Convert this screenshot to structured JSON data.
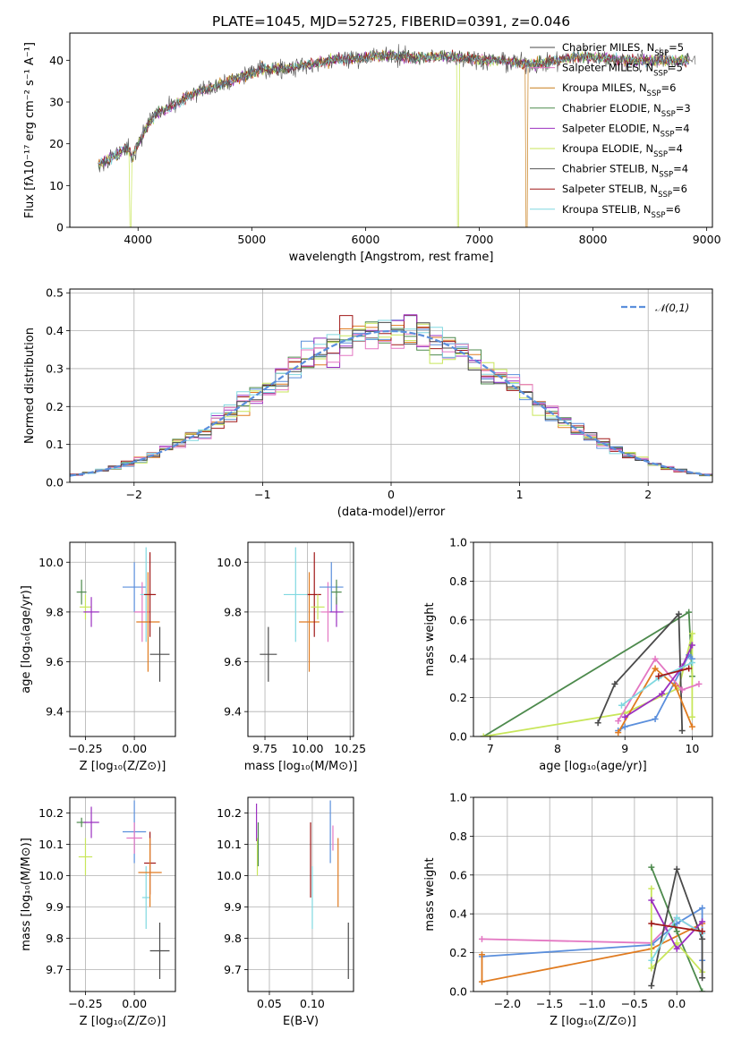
{
  "title": "PLATE=1045, MJD=52725, FIBERID=0391, z=0.046",
  "legend_entries": [
    {
      "label": "Chabrier MILES, N",
      "sub": "SSP",
      "value": "=5",
      "color": "#4a4a4a"
    },
    {
      "label": "Salpeter MILES, N",
      "sub": "SSP",
      "value": "=5",
      "color": "#e377c2"
    },
    {
      "label": "Kroupa MILES, N",
      "sub": "SSP",
      "value": "=6",
      "color": "#c87f1c"
    },
    {
      "label": "Chabrier ELODIE, N",
      "sub": "SSP",
      "value": "=3",
      "color": "#4d8a4d"
    },
    {
      "label": "Salpeter ELODIE, N",
      "sub": "SSP",
      "value": "=4",
      "color": "#9b30c0"
    },
    {
      "label": "Kroupa ELODIE, N",
      "sub": "SSP",
      "value": "=4",
      "color": "#c8e65a"
    },
    {
      "label": "Chabrier STELIB, N",
      "sub": "SSP",
      "value": "=4",
      "color": "#555555"
    },
    {
      "label": "Salpeter STELIB, N",
      "sub": "SSP",
      "value": "=6",
      "color": "#a01818"
    },
    {
      "label": "Kroupa STELIB, N",
      "sub": "SSP",
      "value": "=6",
      "color": "#80d8e0"
    }
  ],
  "chart_data": [
    {
      "id": "spectrum",
      "type": "line",
      "xlabel": "wavelength [Angstrom, rest frame]",
      "ylabel": "Flux [fλ10⁻¹⁷ erg cm⁻² s⁻¹ A⁻¹]",
      "xlim": [
        3400,
        9050
      ],
      "ylim": [
        0,
        46.5
      ],
      "xticks": [
        4000,
        5000,
        6000,
        7000,
        8000,
        9000
      ],
      "yticks": [
        0,
        10,
        20,
        30,
        40
      ],
      "grid": false,
      "legend": "upper right",
      "continuum": [
        [
          3650,
          15
        ],
        [
          3800,
          17
        ],
        [
          3900,
          19
        ],
        [
          3950,
          17
        ],
        [
          4050,
          23
        ],
        [
          4150,
          27
        ],
        [
          4300,
          29
        ],
        [
          4500,
          32
        ],
        [
          4700,
          34
        ],
        [
          4900,
          36
        ],
        [
          5100,
          38
        ],
        [
          5300,
          38
        ],
        [
          5500,
          39
        ],
        [
          5700,
          40
        ],
        [
          5900,
          40.5
        ],
        [
          6100,
          41
        ],
        [
          6300,
          41
        ],
        [
          6500,
          40.5
        ],
        [
          6700,
          41
        ],
        [
          6900,
          40.5
        ],
        [
          7100,
          40
        ],
        [
          7300,
          39.5
        ],
        [
          7500,
          39
        ],
        [
          7700,
          40
        ],
        [
          7900,
          41
        ],
        [
          8100,
          40.5
        ],
        [
          8300,
          40
        ],
        [
          8500,
          40
        ],
        [
          8700,
          40
        ]
      ],
      "model_extent": [
        3650,
        8850
      ],
      "data_extent": [
        3650,
        8900
      ],
      "dropouts": [
        {
          "x": 3930,
          "series": "Kroupa ELODIE"
        },
        {
          "x": 6810,
          "series": "Kroupa ELODIE"
        },
        {
          "x": 7420,
          "series": "Kroupa MILES"
        }
      ]
    },
    {
      "id": "residuals",
      "type": "histogram",
      "xlabel": "(data-model)/error",
      "ylabel": "Normed distribution",
      "xlim": [
        -2.5,
        2.5
      ],
      "ylim": [
        0,
        0.51
      ],
      "xticks": [
        -2,
        -1,
        0,
        1,
        2
      ],
      "yticks": [
        0,
        0.1,
        0.2,
        0.3,
        0.4,
        0.5
      ],
      "grid": true,
      "legend": "upper right",
      "reference": {
        "label": "𝒩(0,1)",
        "style": "dashed",
        "color": "#5b8fdc"
      },
      "bin_width": 0.1
    },
    {
      "id": "age-vs-Z",
      "type": "scatter",
      "xlabel": "Z [log₁₀(Z/Z⊙)]",
      "ylabel": "age  [log₁₀(age/yr)]",
      "xlim": [
        -0.33,
        0.21
      ],
      "ylim": [
        9.3,
        10.08
      ],
      "xticks": [
        -0.25,
        0.0
      ],
      "yticks": [
        9.4,
        9.6,
        9.8,
        10.0
      ],
      "grid": true,
      "points": [
        {
          "x": -0.27,
          "y": 9.88,
          "xerr": 0.025,
          "yerr": 0.05,
          "color": "#4d8a4d"
        },
        {
          "x": -0.25,
          "y": 9.82,
          "xerr": 0.03,
          "yerr": 0.05,
          "color": "#c8e65a"
        },
        {
          "x": -0.22,
          "y": 9.8,
          "xerr": 0.04,
          "yerr": 0.06,
          "color": "#9b30c0"
        },
        {
          "x": 0.0,
          "y": 9.9,
          "xerr": 0.06,
          "yerr": 0.1,
          "color": "#5b8fdc"
        },
        {
          "x": 0.04,
          "y": 9.8,
          "xerr": 0.04,
          "yerr": 0.12,
          "color": "#e377c2"
        },
        {
          "x": 0.06,
          "y": 9.87,
          "xerr": 0.03,
          "yerr": 0.19,
          "color": "#80d8e0"
        },
        {
          "x": 0.07,
          "y": 9.76,
          "xerr": 0.06,
          "yerr": 0.2,
          "color": "#e07b20"
        },
        {
          "x": 0.08,
          "y": 9.87,
          "xerr": 0.03,
          "yerr": 0.17,
          "color": "#a01818"
        },
        {
          "x": 0.13,
          "y": 9.63,
          "xerr": 0.05,
          "yerr": 0.11,
          "color": "#4a4a4a"
        }
      ]
    },
    {
      "id": "age-vs-mass",
      "type": "scatter",
      "xlabel": "mass [log₁₀(M/M⊙)]",
      "ylabel": "",
      "xlim": [
        9.65,
        10.27
      ],
      "ylim": [
        9.3,
        10.08
      ],
      "xticks": [
        9.75,
        10.0,
        10.25
      ],
      "yticks": [
        9.4,
        9.6,
        9.8,
        10.0
      ],
      "grid": true,
      "points": [
        {
          "x": 9.77,
          "y": 9.63,
          "xerr": 0.05,
          "yerr": 0.11,
          "color": "#4a4a4a"
        },
        {
          "x": 9.93,
          "y": 9.87,
          "xerr": 0.07,
          "yerr": 0.19,
          "color": "#80d8e0"
        },
        {
          "x": 10.01,
          "y": 9.76,
          "xerr": 0.06,
          "yerr": 0.2,
          "color": "#e07b20"
        },
        {
          "x": 10.04,
          "y": 9.87,
          "xerr": 0.04,
          "yerr": 0.17,
          "color": "#a01818"
        },
        {
          "x": 10.06,
          "y": 9.82,
          "xerr": 0.04,
          "yerr": 0.05,
          "color": "#c8e65a"
        },
        {
          "x": 10.12,
          "y": 9.8,
          "xerr": 0.04,
          "yerr": 0.12,
          "color": "#e377c2"
        },
        {
          "x": 10.14,
          "y": 9.9,
          "xerr": 0.07,
          "yerr": 0.1,
          "color": "#5b8fdc"
        },
        {
          "x": 10.17,
          "y": 9.8,
          "xerr": 0.04,
          "yerr": 0.06,
          "color": "#9b30c0"
        },
        {
          "x": 10.17,
          "y": 9.88,
          "xerr": 0.03,
          "yerr": 0.05,
          "color": "#4d8a4d"
        }
      ]
    },
    {
      "id": "weight-vs-age",
      "type": "line",
      "xlabel": "age  [log₁₀(age/yr)]",
      "ylabel": "mass weight",
      "xlim": [
        6.75,
        10.3
      ],
      "ylim": [
        0,
        1
      ],
      "xticks": [
        7,
        8,
        9,
        10
      ],
      "yticks": [
        0,
        0.2,
        0.4,
        0.6,
        0.8,
        1.0
      ],
      "grid": true,
      "series": [
        {
          "color": "#4d8a4d",
          "points": [
            [
              6.9,
              0.0
            ],
            [
              9.95,
              0.64
            ],
            [
              10.0,
              0.31
            ]
          ]
        },
        {
          "color": "#c8e65a",
          "points": [
            [
              6.9,
              0.0
            ],
            [
              9.0,
              0.12
            ],
            [
              9.8,
              0.25
            ],
            [
              10.0,
              0.53
            ],
            [
              10.0,
              0.1
            ]
          ]
        },
        {
          "color": "#4a4a4a",
          "points": [
            [
              8.6,
              0.07
            ],
            [
              8.85,
              0.27
            ],
            [
              9.8,
              0.63
            ],
            [
              9.85,
              0.03
            ]
          ]
        },
        {
          "color": "#5b8fdc",
          "points": [
            [
              8.9,
              0.03
            ],
            [
              9.0,
              0.05
            ],
            [
              9.45,
              0.09
            ],
            [
              9.95,
              0.42
            ],
            [
              10.0,
              0.4
            ]
          ]
        },
        {
          "color": "#e377c2",
          "points": [
            [
              8.9,
              0.08
            ],
            [
              9.45,
              0.4
            ],
            [
              9.85,
              0.24
            ],
            [
              10.1,
              0.27
            ]
          ]
        },
        {
          "color": "#e07b20",
          "points": [
            [
              8.9,
              0.02
            ],
            [
              9.45,
              0.35
            ],
            [
              9.75,
              0.26
            ],
            [
              10.0,
              0.05
            ]
          ]
        },
        {
          "color": "#9b30c0",
          "points": [
            [
              9.0,
              0.1
            ],
            [
              9.55,
              0.22
            ],
            [
              9.85,
              0.36
            ],
            [
              10.0,
              0.47
            ]
          ]
        },
        {
          "color": "#80d8e0",
          "points": [
            [
              8.95,
              0.16
            ],
            [
              9.5,
              0.3
            ],
            [
              10.0,
              0.38
            ]
          ]
        },
        {
          "color": "#a01818",
          "points": [
            [
              9.5,
              0.31
            ],
            [
              9.95,
              0.35
            ]
          ]
        }
      ]
    },
    {
      "id": "mass-vs-Z",
      "type": "scatter",
      "xlabel": "Z [log₁₀(Z/Z⊙)]",
      "ylabel": "mass [log₁₀(M/M⊙)]",
      "xlim": [
        -0.33,
        0.21
      ],
      "ylim": [
        9.63,
        10.25
      ],
      "xticks": [
        -0.25,
        0.0
      ],
      "yticks": [
        9.7,
        9.8,
        9.9,
        10.0,
        10.1,
        10.2
      ],
      "grid": true,
      "points": [
        {
          "x": -0.27,
          "y": 10.17,
          "xerr": 0.025,
          "yerr": 0.015,
          "color": "#4d8a4d"
        },
        {
          "x": -0.25,
          "y": 10.06,
          "xerr": 0.035,
          "yerr": 0.06,
          "color": "#c8e65a"
        },
        {
          "x": -0.22,
          "y": 10.17,
          "xerr": 0.04,
          "yerr": 0.05,
          "color": "#9b30c0"
        },
        {
          "x": 0.0,
          "y": 10.14,
          "xerr": 0.06,
          "yerr": 0.1,
          "color": "#5b8fdc"
        },
        {
          "x": 0.0,
          "y": 10.12,
          "xerr": 0.04,
          "yerr": 0.05,
          "color": "#e377c2"
        },
        {
          "x": 0.06,
          "y": 9.93,
          "xerr": 0.02,
          "yerr": 0.1,
          "color": "#80d8e0"
        },
        {
          "x": 0.08,
          "y": 10.04,
          "xerr": 0.03,
          "yerr": 0.1,
          "color": "#a01818"
        },
        {
          "x": 0.08,
          "y": 10.01,
          "xerr": 0.06,
          "yerr": 0.11,
          "color": "#e07b20"
        },
        {
          "x": 0.13,
          "y": 9.76,
          "xerr": 0.05,
          "yerr": 0.09,
          "color": "#4a4a4a"
        }
      ]
    },
    {
      "id": "mass-vs-EBV",
      "type": "scatter",
      "xlabel": "E(B-V)",
      "ylabel": "",
      "xlim": [
        0.025,
        0.148
      ],
      "ylim": [
        9.63,
        10.25
      ],
      "xticks": [
        0.05,
        0.1
      ],
      "yticks": [
        9.7,
        9.8,
        9.9,
        10.0,
        10.1,
        10.2
      ],
      "grid": true,
      "points": [
        {
          "x": 0.035,
          "y": 10.17,
          "xerr": 0,
          "yerr": 0.06,
          "color": "#9b30c0"
        },
        {
          "x": 0.036,
          "y": 10.06,
          "xerr": 0,
          "yerr": 0.06,
          "color": "#c8e65a"
        },
        {
          "x": 0.037,
          "y": 10.1,
          "xerr": 0,
          "yerr": 0.07,
          "color": "#4d8a4d"
        },
        {
          "x": 0.098,
          "y": 10.05,
          "xerr": 0,
          "yerr": 0.12,
          "color": "#a01818"
        },
        {
          "x": 0.1,
          "y": 9.93,
          "xerr": 0,
          "yerr": 0.1,
          "color": "#80d8e0"
        },
        {
          "x": 0.121,
          "y": 10.14,
          "xerr": 0,
          "yerr": 0.1,
          "color": "#5b8fdc"
        },
        {
          "x": 0.124,
          "y": 10.12,
          "xerr": 0,
          "yerr": 0.04,
          "color": "#e377c2"
        },
        {
          "x": 0.13,
          "y": 10.01,
          "xerr": 0,
          "yerr": 0.11,
          "color": "#e07b20"
        },
        {
          "x": 0.142,
          "y": 9.76,
          "xerr": 0,
          "yerr": 0.09,
          "color": "#4a4a4a"
        }
      ]
    },
    {
      "id": "weight-vs-Z",
      "type": "line",
      "xlabel": "Z [log₁₀(Z/Z⊙)]",
      "ylabel": "mass weight",
      "xlim": [
        -2.4,
        0.42
      ],
      "ylim": [
        0,
        1
      ],
      "xticks": [
        -2.0,
        -1.5,
        -1.0,
        -0.5,
        0.0
      ],
      "yticks": [
        0,
        0.2,
        0.4,
        0.6,
        0.8,
        1.0
      ],
      "grid": true,
      "series": [
        {
          "color": "#e377c2",
          "points": [
            [
              -2.3,
              0.27
            ],
            [
              -0.3,
              0.25
            ],
            [
              0.0,
              0.38
            ],
            [
              0.3,
              0.3
            ]
          ]
        },
        {
          "color": "#5b8fdc",
          "points": [
            [
              -2.3,
              0.18
            ],
            [
              -0.3,
              0.24
            ],
            [
              0.0,
              0.35
            ],
            [
              0.3,
              0.43
            ],
            [
              0.3,
              0.16
            ]
          ]
        },
        {
          "color": "#e07b20",
          "points": [
            [
              -2.3,
              0.19
            ],
            [
              -2.3,
              0.05
            ],
            [
              -0.3,
              0.22
            ],
            [
              0.3,
              0.35
            ]
          ]
        },
        {
          "color": "#4d8a4d",
          "points": [
            [
              -0.3,
              0.64
            ],
            [
              0.0,
              0.31
            ],
            [
              0.3,
              0.0
            ]
          ]
        },
        {
          "color": "#c8e65a",
          "points": [
            [
              -0.3,
              0.53
            ],
            [
              -0.3,
              0.12
            ],
            [
              0.0,
              0.25
            ],
            [
              0.3,
              0.1
            ]
          ]
        },
        {
          "color": "#4a4a4a",
          "points": [
            [
              -0.3,
              0.03
            ],
            [
              0.0,
              0.63
            ],
            [
              0.3,
              0.27
            ],
            [
              0.3,
              0.07
            ]
          ]
        },
        {
          "color": "#9b30c0",
          "points": [
            [
              -0.3,
              0.47
            ],
            [
              0.0,
              0.22
            ],
            [
              0.3,
              0.36
            ]
          ]
        },
        {
          "color": "#80d8e0",
          "points": [
            [
              -0.3,
              0.16
            ],
            [
              0.0,
              0.38
            ],
            [
              0.3,
              0.3
            ]
          ]
        },
        {
          "color": "#a01818",
          "points": [
            [
              -0.3,
              0.35
            ],
            [
              0.3,
              0.31
            ]
          ]
        }
      ]
    }
  ]
}
